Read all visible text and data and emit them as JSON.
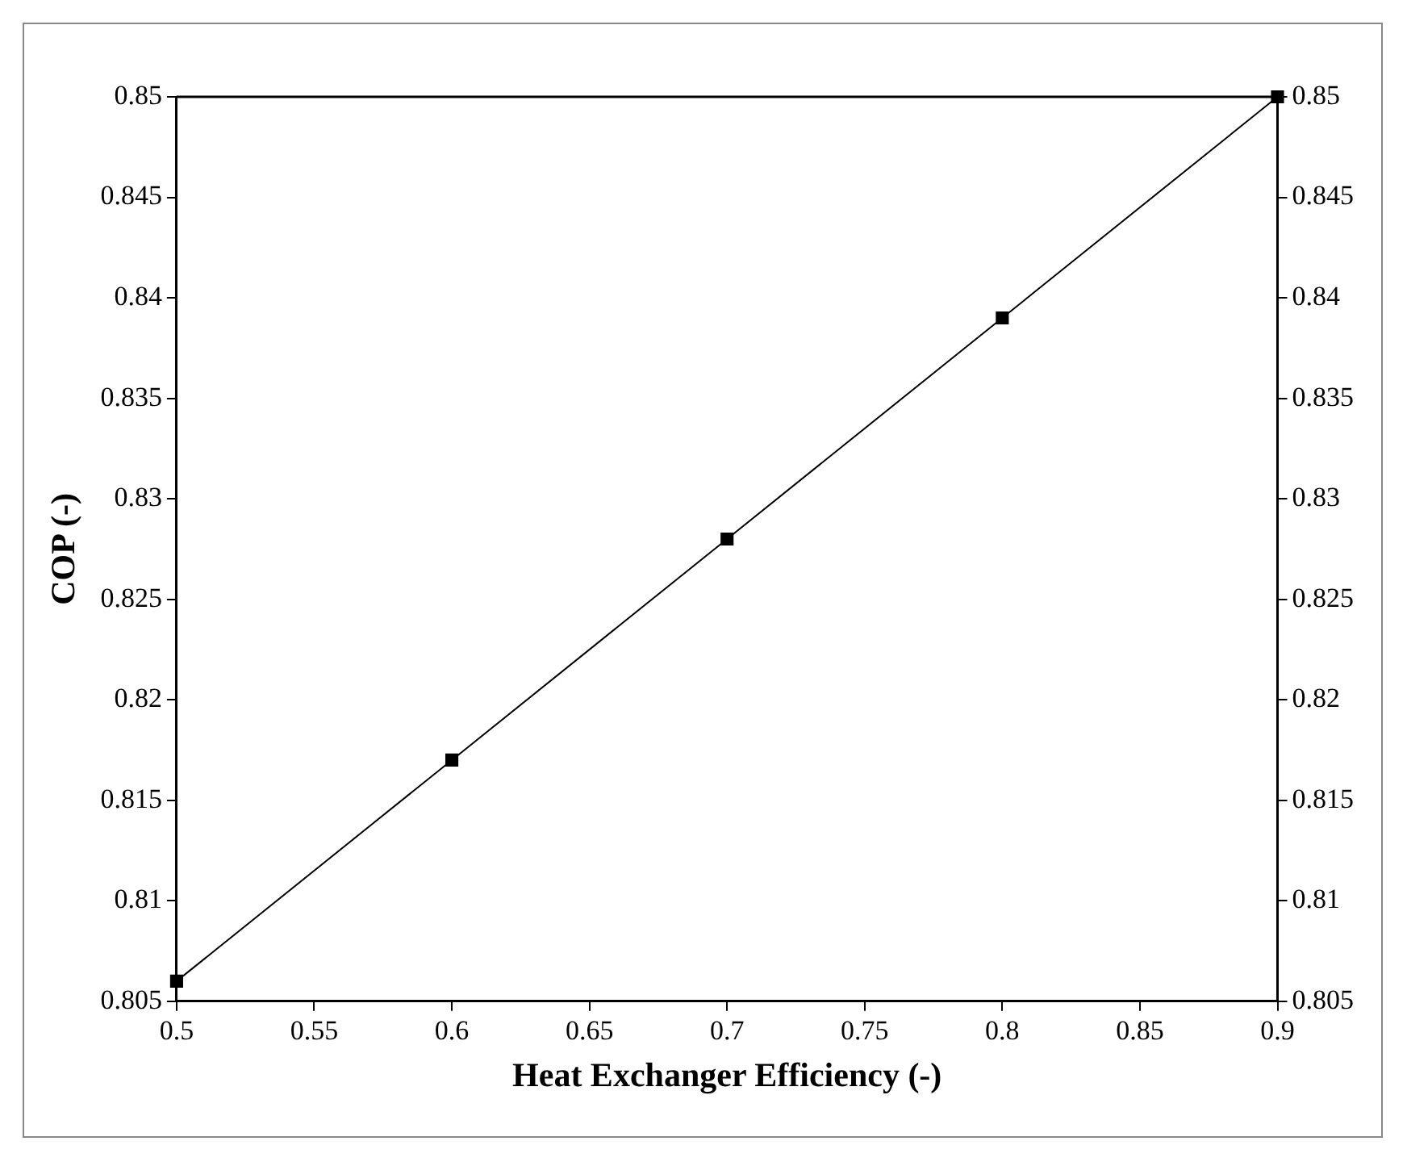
{
  "chart_data": {
    "type": "line",
    "xlabel": "Heat Exchanger Efficiency (-)",
    "ylabel": "COP (-)",
    "x": [
      0.5,
      0.6,
      0.7,
      0.8,
      0.9
    ],
    "series": [
      {
        "color": "#000000",
        "values": [
          0.806,
          0.817,
          0.828,
          0.839,
          0.85
        ]
      }
    ],
    "xlim": [
      0.5,
      0.9
    ],
    "xticks": [
      0.5,
      0.55,
      0.6,
      0.65,
      0.7,
      0.75,
      0.8,
      0.85,
      0.9
    ],
    "ylim": [
      0.805,
      0.85
    ],
    "yticks": [
      0.805,
      0.81,
      0.815,
      0.82,
      0.825,
      0.83,
      0.835,
      0.84,
      0.845,
      0.85
    ],
    "y2lim": [
      0.805,
      0.85
    ],
    "y2ticks": [
      0.805,
      0.81,
      0.815,
      0.82,
      0.825,
      0.83,
      0.835,
      0.84,
      0.845,
      0.85
    ],
    "marker": "square",
    "line_style": "solid",
    "grid": false,
    "legend": false
  }
}
